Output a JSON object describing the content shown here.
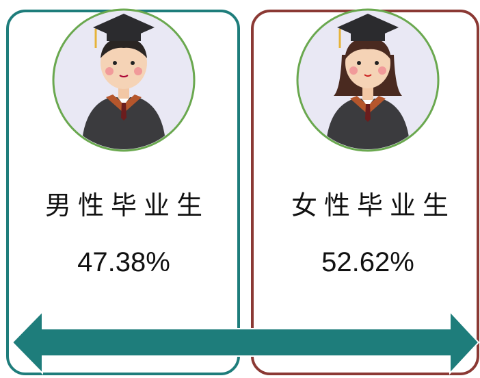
{
  "cards": [
    {
      "label": "男性毕业生",
      "percent": "47.38%"
    },
    {
      "label": "女性毕业生",
      "percent": "52.62%"
    }
  ]
}
